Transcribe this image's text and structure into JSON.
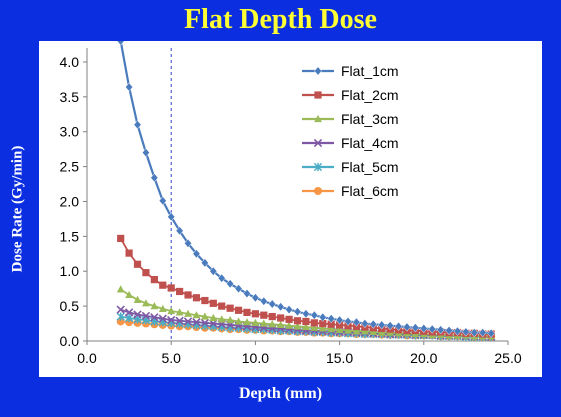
{
  "chart_data": {
    "type": "line",
    "title": "Flat Depth Dose",
    "xlabel": "Depth (mm)",
    "ylabel": "Dose Rate (Gy/min)",
    "xlim": [
      0,
      25
    ],
    "ylim": [
      0,
      4.2
    ],
    "xticks": [
      "0.0",
      "5.0",
      "10.0",
      "15.0",
      "20.0",
      "25.0"
    ],
    "yticks": [
      "0.0",
      "0.5",
      "1.0",
      "1.5",
      "2.0",
      "2.5",
      "3.0",
      "3.5",
      "4.0"
    ],
    "grid": false,
    "legend_position": "top-right",
    "reference_line_x": 5,
    "x": [
      2,
      2.5,
      3,
      3.5,
      4,
      4.5,
      5,
      5.5,
      6,
      6.5,
      7,
      7.5,
      8,
      8.5,
      9,
      9.5,
      10,
      10.5,
      11,
      11.5,
      12,
      12.5,
      13,
      13.5,
      14,
      14.5,
      15,
      15.5,
      16,
      16.5,
      17,
      17.5,
      18,
      18.5,
      19,
      19.5,
      20,
      20.5,
      21,
      21.5,
      22,
      22.5,
      23,
      23.5,
      24
    ],
    "series": [
      {
        "name": "Flat_1cm",
        "color": "#4a7bbd",
        "marker": "diamond",
        "values": [
          4.3,
          3.64,
          3.1,
          2.7,
          2.34,
          2.01,
          1.78,
          1.58,
          1.4,
          1.25,
          1.12,
          1.0,
          0.9,
          0.82,
          0.75,
          0.68,
          0.62,
          0.57,
          0.53,
          0.49,
          0.45,
          0.42,
          0.39,
          0.37,
          0.34,
          0.32,
          0.3,
          0.28,
          0.27,
          0.25,
          0.24,
          0.23,
          0.22,
          0.21,
          0.2,
          0.19,
          0.18,
          0.17,
          0.16,
          0.15,
          0.14,
          0.13,
          0.12,
          0.12,
          0.11
        ]
      },
      {
        "name": "Flat_2cm",
        "color": "#c0504d",
        "marker": "square",
        "values": [
          1.47,
          1.26,
          1.1,
          0.98,
          0.88,
          0.8,
          0.76,
          0.71,
          0.66,
          0.62,
          0.58,
          0.54,
          0.5,
          0.47,
          0.44,
          0.41,
          0.39,
          0.37,
          0.35,
          0.33,
          0.31,
          0.29,
          0.28,
          0.26,
          0.25,
          0.24,
          0.23,
          0.22,
          0.21,
          0.2,
          0.19,
          0.18,
          0.17,
          0.16,
          0.15,
          0.15,
          0.14,
          0.13,
          0.13,
          0.12,
          0.12,
          0.11,
          0.11,
          0.1,
          0.1
        ]
      },
      {
        "name": "Flat_3cm",
        "color": "#9bbb59",
        "marker": "triangle",
        "values": [
          0.74,
          0.66,
          0.59,
          0.54,
          0.5,
          0.46,
          0.43,
          0.41,
          0.39,
          0.37,
          0.35,
          0.33,
          0.31,
          0.3,
          0.28,
          0.27,
          0.26,
          0.25,
          0.24,
          0.23,
          0.22,
          0.21,
          0.2,
          0.19,
          0.18,
          0.17,
          0.16,
          0.15,
          0.14,
          0.14,
          0.13,
          0.12,
          0.12,
          0.11,
          0.11,
          0.1,
          0.1,
          0.09,
          0.09,
          0.08,
          0.08,
          0.08,
          0.07,
          0.07,
          0.07
        ]
      },
      {
        "name": "Flat_4cm",
        "color": "#7e58a4",
        "marker": "x",
        "values": [
          0.45,
          0.41,
          0.38,
          0.36,
          0.34,
          0.32,
          0.3,
          0.29,
          0.28,
          0.27,
          0.26,
          0.25,
          0.24,
          0.23,
          0.22,
          0.21,
          0.2,
          0.19,
          0.18,
          0.18,
          0.17,
          0.16,
          0.15,
          0.15,
          0.14,
          0.14,
          0.13,
          0.13,
          0.12,
          0.12,
          0.11,
          0.11,
          0.1,
          0.1,
          0.1,
          0.09,
          0.09,
          0.09,
          0.08,
          0.08,
          0.08,
          0.07,
          0.07,
          0.07,
          0.06
        ]
      },
      {
        "name": "Flat_5cm",
        "color": "#4bacc6",
        "marker": "star",
        "values": [
          0.35,
          0.33,
          0.31,
          0.3,
          0.28,
          0.27,
          0.26,
          0.25,
          0.24,
          0.23,
          0.22,
          0.21,
          0.2,
          0.19,
          0.19,
          0.18,
          0.17,
          0.17,
          0.16,
          0.15,
          0.15,
          0.14,
          0.14,
          0.13,
          0.13,
          0.12,
          0.12,
          0.11,
          0.11,
          0.1,
          0.1,
          0.1,
          0.09,
          0.09,
          0.09,
          0.08,
          0.08,
          0.08,
          0.07,
          0.07,
          0.07,
          0.06,
          0.06,
          0.06,
          0.06
        ]
      },
      {
        "name": "Flat_6cm",
        "color": "#f79646",
        "marker": "circle",
        "values": [
          0.28,
          0.27,
          0.26,
          0.25,
          0.24,
          0.23,
          0.22,
          0.21,
          0.21,
          0.2,
          0.19,
          0.19,
          0.18,
          0.17,
          0.17,
          0.16,
          0.16,
          0.15,
          0.15,
          0.14,
          0.14,
          0.13,
          0.13,
          0.12,
          0.12,
          0.11,
          0.11,
          0.11,
          0.1,
          0.1,
          0.1,
          0.09,
          0.09,
          0.09,
          0.08,
          0.08,
          0.08,
          0.08,
          0.07,
          0.07,
          0.07,
          0.07,
          0.06,
          0.06,
          0.06
        ]
      }
    ]
  }
}
